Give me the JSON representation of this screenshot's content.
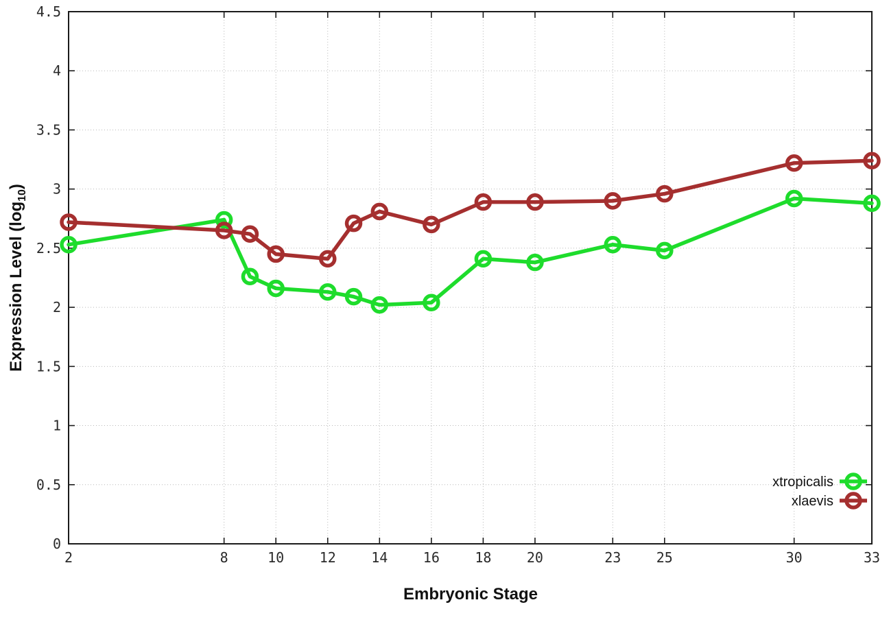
{
  "figure": {
    "background": "#ffffff",
    "border_color": "#1a1a1a",
    "grid_color": "#b8b8b8",
    "tick_text_color": "#2a2a2a"
  },
  "axis_titles": {
    "x": "Embryonic Stage",
    "y_prefix": "Expression Level (log",
    "y_sub": "10",
    "y_suffix": ")"
  },
  "chart_data": {
    "type": "line",
    "title": "",
    "xlabel": "Embryonic Stage",
    "ylabel": "Expression Level (log10)",
    "x": [
      2,
      8,
      9,
      10,
      12,
      13,
      14,
      16,
      18,
      20,
      23,
      25,
      30,
      33
    ],
    "series": [
      {
        "name": "xtropicalis",
        "color": "#1edc2c",
        "values": [
          2.53,
          2.74,
          2.26,
          2.16,
          2.13,
          2.09,
          2.02,
          2.04,
          2.41,
          2.38,
          2.53,
          2.48,
          2.92,
          2.88
        ]
      },
      {
        "name": "xlaevis",
        "color": "#a52f2f",
        "values": [
          2.72,
          2.65,
          2.62,
          2.45,
          2.41,
          2.71,
          2.81,
          2.7,
          2.89,
          2.89,
          2.9,
          2.96,
          3.22,
          3.24
        ]
      }
    ],
    "x_ticks": [
      2,
      8,
      10,
      12,
      14,
      16,
      18,
      20,
      23,
      25,
      30,
      33
    ],
    "y_ticks": [
      0,
      0.5,
      1,
      1.5,
      2,
      2.5,
      3,
      3.5,
      4,
      4.5
    ],
    "xlim": [
      2,
      33
    ],
    "ylim": [
      0,
      4.5
    ],
    "grid": true,
    "legend_position": "bottom-right",
    "marker": "open-circle"
  }
}
